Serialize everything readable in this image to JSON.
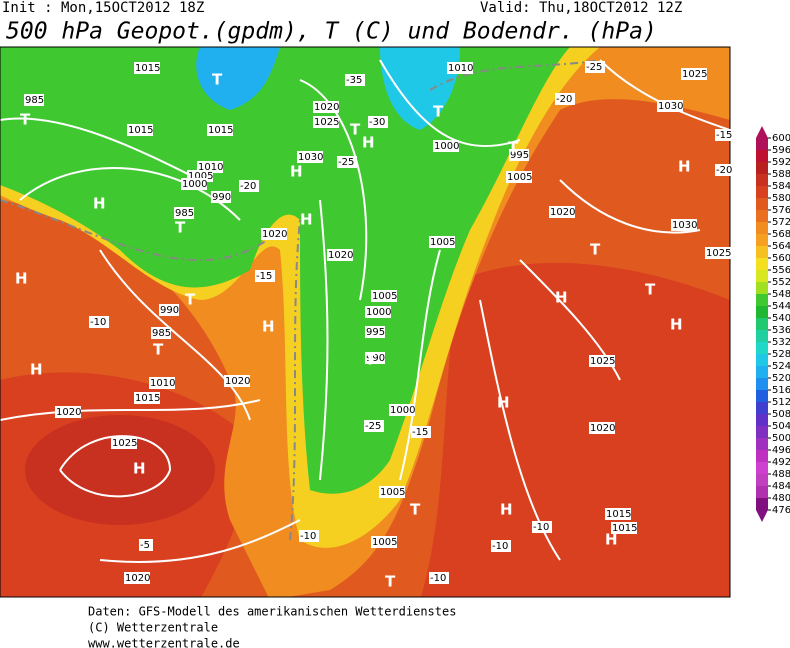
{
  "header": {
    "init": "Init : Mon,15OCT2012 18Z",
    "valid": "Valid: Thu,18OCT2012 12Z",
    "title": "500 hPa Geopot.(gpdm), T (C) und Bodendr. (hPa)"
  },
  "colorbar": {
    "ticks": [
      600,
      596,
      592,
      588,
      584,
      580,
      576,
      572,
      568,
      564,
      560,
      556,
      552,
      548,
      544,
      540,
      536,
      532,
      528,
      524,
      520,
      516,
      512,
      508,
      504,
      500,
      496,
      492,
      488,
      484,
      480,
      476
    ],
    "colors": [
      "#b0105a",
      "#c01030",
      "#b82020",
      "#c83020",
      "#d84020",
      "#e05a20",
      "#e87020",
      "#f08c20",
      "#f5a020",
      "#f5c020",
      "#f5e020",
      "#d8e820",
      "#a0e020",
      "#40c830",
      "#20b830",
      "#20c870",
      "#20d0a0",
      "#20d8c8",
      "#20c8e8",
      "#20b0f0",
      "#2090f0",
      "#2060e0",
      "#4040d0",
      "#6030c8",
      "#8030c0",
      "#a030c0",
      "#c030c0",
      "#d040d0",
      "#c040c0",
      "#b030b0",
      "#801080"
    ]
  },
  "map_labels": [
    "1015",
    "985",
    "1015",
    "1015",
    "1010",
    "1005",
    "1000",
    "990",
    "985",
    "1020",
    "1020",
    "1025",
    "1030",
    "1020",
    "1005",
    "1000",
    "995",
    "990",
    "1000",
    "1005",
    "1005",
    "1020",
    "1025",
    "1020",
    "1020",
    "1010",
    "1015",
    "990",
    "985",
    "1000",
    "995",
    "1005",
    "1010",
    "1025",
    "1030",
    "1020",
    "1030",
    "1025",
    "1025",
    "1020",
    "1015",
    "1015",
    "1005",
    "H",
    "H",
    "H",
    "H",
    "H",
    "H",
    "H",
    "H",
    "H",
    "H",
    "H",
    "H",
    "H",
    "H",
    "T",
    "T",
    "T",
    "T",
    "T",
    "T",
    "T",
    "T",
    "T",
    "T",
    "T",
    "T",
    "T",
    "-35",
    "-30",
    "-25",
    "-20",
    "-15",
    "-10",
    "-25",
    "-15",
    "-5",
    "-10",
    "-10",
    "-25",
    "-20",
    "-15",
    "-20",
    "-10",
    "-10"
  ],
  "footer": [
    "Daten: GFS-Modell des amerikanischen Wetterdienstes",
    "(C) Wetterzentrale",
    "www.wetterzentrale.de"
  ]
}
